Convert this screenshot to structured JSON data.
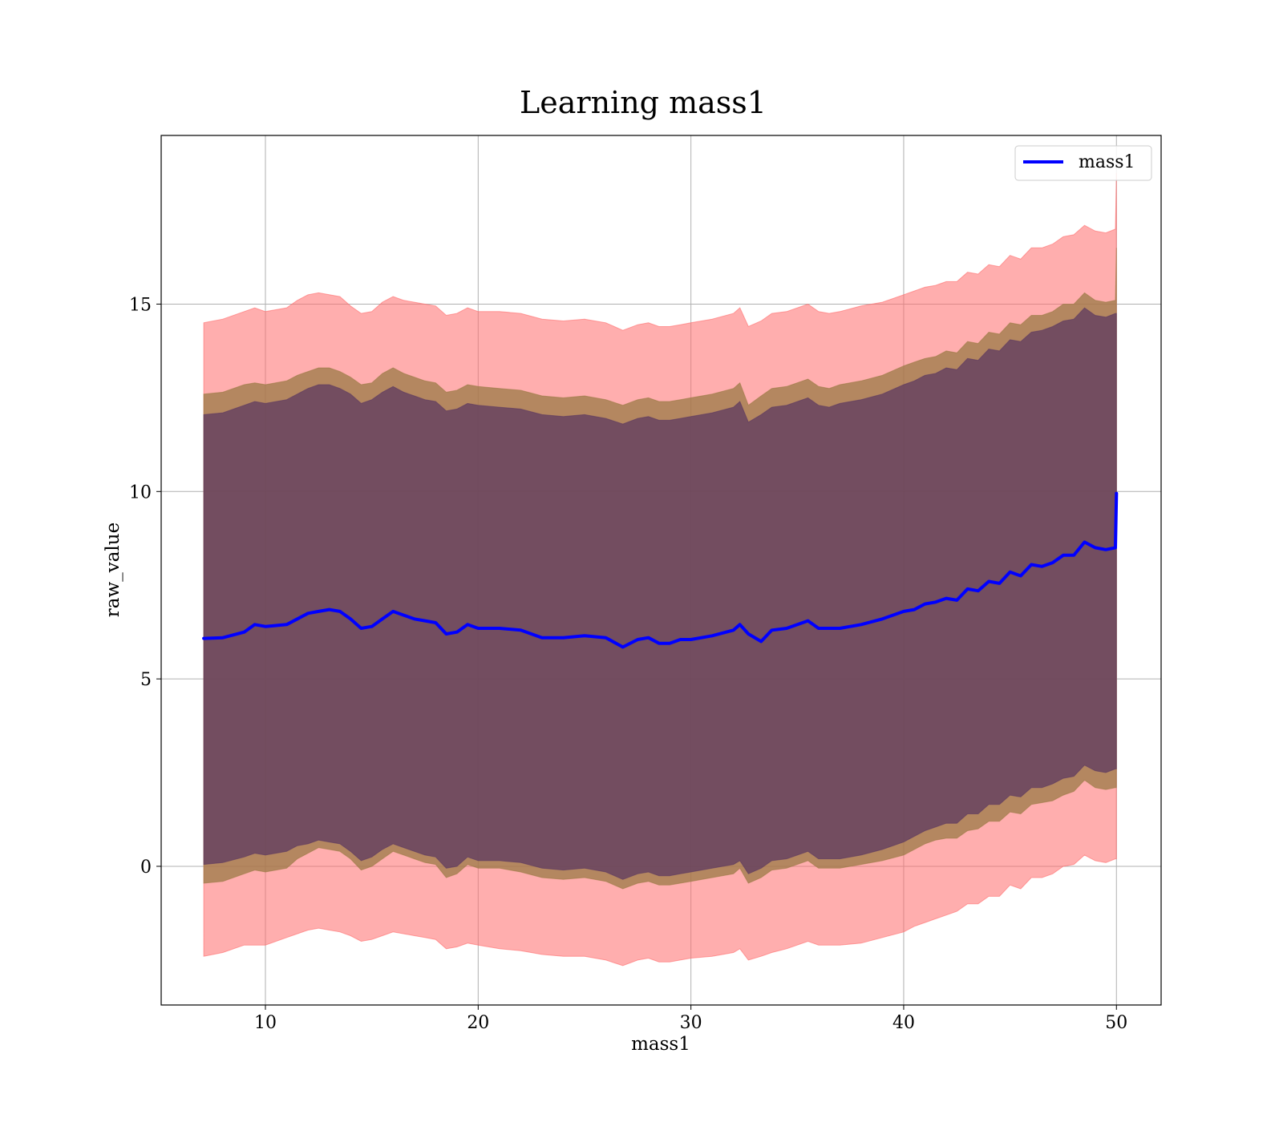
{
  "chart_data": {
    "type": "area",
    "title": "Learning mass1",
    "xlabel": "mass1",
    "ylabel": "raw_value",
    "xlim": [
      5.1,
      52.1
    ],
    "ylim": [
      -3.7,
      19.5
    ],
    "xticks": [
      10,
      20,
      30,
      40,
      50
    ],
    "yticks": [
      0,
      5,
      10,
      15
    ],
    "grid": true,
    "legend": {
      "position": "top-right",
      "entries": [
        "mass1"
      ]
    },
    "colors": {
      "line": "#0000ff",
      "outer_band": "#ff6b6b",
      "middle_band": "#9b7a45",
      "inner_band": "#5a3760",
      "grid": "#b0b0b0"
    },
    "x": [
      7.1,
      8.0,
      9.0,
      9.5,
      10.0,
      11.0,
      11.5,
      12.0,
      12.5,
      13.0,
      13.5,
      14.0,
      14.5,
      15.0,
      15.5,
      16.0,
      16.5,
      17.0,
      17.5,
      18.0,
      18.5,
      19.0,
      19.5,
      20.0,
      21.0,
      22.0,
      23.0,
      24.0,
      25.0,
      26.0,
      26.8,
      27.5,
      28.0,
      28.5,
      29.0,
      29.5,
      30.0,
      31.0,
      32.0,
      32.3,
      32.7,
      33.3,
      33.8,
      34.5,
      35.5,
      36.0,
      36.5,
      37.0,
      38.0,
      39.0,
      40.0,
      40.5,
      41.0,
      41.5,
      42.0,
      42.5,
      43.0,
      43.5,
      44.0,
      44.5,
      45.0,
      45.5,
      46.0,
      46.5,
      47.0,
      47.5,
      48.0,
      48.5,
      49.0,
      49.5,
      49.95
    ],
    "series": [
      {
        "name": "mass1",
        "kind": "line",
        "values": [
          6.08,
          6.1,
          6.25,
          6.45,
          6.4,
          6.45,
          6.6,
          6.75,
          6.8,
          6.85,
          6.8,
          6.6,
          6.35,
          6.4,
          6.6,
          6.8,
          6.7,
          6.6,
          6.55,
          6.5,
          6.2,
          6.25,
          6.45,
          6.35,
          6.35,
          6.3,
          6.1,
          6.1,
          6.15,
          6.1,
          5.85,
          6.05,
          6.1,
          5.95,
          5.95,
          6.05,
          6.05,
          6.15,
          6.3,
          6.45,
          6.2,
          6.0,
          6.3,
          6.35,
          6.55,
          6.35,
          6.35,
          6.35,
          6.45,
          6.6,
          6.8,
          6.85,
          7.0,
          7.05,
          7.15,
          7.1,
          7.4,
          7.35,
          7.6,
          7.55,
          7.85,
          7.75,
          8.05,
          8.0,
          8.1,
          8.3,
          8.3,
          8.65,
          8.5,
          8.45,
          8.5
        ]
      },
      {
        "kind": "band",
        "lower": [
          -2.4,
          -2.3,
          -2.1,
          -2.1,
          -2.1,
          -1.9,
          -1.8,
          -1.7,
          -1.65,
          -1.7,
          -1.75,
          -1.85,
          -2.0,
          -1.95,
          -1.85,
          -1.75,
          -1.8,
          -1.85,
          -1.9,
          -1.95,
          -2.2,
          -2.15,
          -2.05,
          -2.1,
          -2.2,
          -2.25,
          -2.35,
          -2.4,
          -2.4,
          -2.5,
          -2.65,
          -2.5,
          -2.45,
          -2.55,
          -2.55,
          -2.5,
          -2.45,
          -2.4,
          -2.3,
          -2.2,
          -2.5,
          -2.4,
          -2.3,
          -2.2,
          -2.0,
          -2.1,
          -2.1,
          -2.1,
          -2.05,
          -1.9,
          -1.75,
          -1.6,
          -1.5,
          -1.4,
          -1.3,
          -1.2,
          -1.0,
          -1.0,
          -0.8,
          -0.8,
          -0.5,
          -0.6,
          -0.3,
          -0.3,
          -0.2,
          0.0,
          0.05,
          0.3,
          0.15,
          0.1,
          0.2
        ],
        "upper": [
          14.5,
          14.6,
          14.8,
          14.9,
          14.8,
          14.9,
          15.1,
          15.25,
          15.3,
          15.25,
          15.2,
          14.95,
          14.75,
          14.8,
          15.05,
          15.2,
          15.1,
          15.05,
          15.0,
          14.95,
          14.7,
          14.75,
          14.9,
          14.8,
          14.8,
          14.75,
          14.6,
          14.55,
          14.6,
          14.5,
          14.3,
          14.45,
          14.5,
          14.4,
          14.4,
          14.45,
          14.5,
          14.6,
          14.75,
          14.9,
          14.4,
          14.55,
          14.75,
          14.8,
          15.0,
          14.8,
          14.75,
          14.8,
          14.95,
          15.05,
          15.25,
          15.35,
          15.45,
          15.5,
          15.6,
          15.6,
          15.85,
          15.8,
          16.05,
          16.0,
          16.3,
          16.2,
          16.5,
          16.5,
          16.6,
          16.8,
          16.85,
          17.1,
          16.95,
          16.9,
          17.0
        ]
      },
      {
        "kind": "band",
        "lower": [
          -0.45,
          -0.4,
          -0.2,
          -0.1,
          -0.15,
          -0.05,
          0.2,
          0.35,
          0.5,
          0.45,
          0.4,
          0.2,
          -0.1,
          0.0,
          0.2,
          0.4,
          0.3,
          0.2,
          0.1,
          0.05,
          -0.3,
          -0.2,
          0.05,
          -0.05,
          -0.05,
          -0.15,
          -0.3,
          -0.35,
          -0.3,
          -0.4,
          -0.6,
          -0.45,
          -0.4,
          -0.5,
          -0.5,
          -0.45,
          -0.4,
          -0.3,
          -0.2,
          -0.05,
          -0.45,
          -0.3,
          -0.1,
          -0.05,
          0.15,
          -0.05,
          -0.05,
          -0.05,
          0.05,
          0.15,
          0.3,
          0.45,
          0.6,
          0.7,
          0.75,
          0.75,
          0.95,
          1.0,
          1.2,
          1.2,
          1.45,
          1.4,
          1.65,
          1.7,
          1.75,
          1.9,
          2.0,
          2.3,
          2.1,
          2.05,
          2.1
        ],
        "upper": [
          12.6,
          12.65,
          12.85,
          12.9,
          12.85,
          12.95,
          13.1,
          13.2,
          13.3,
          13.3,
          13.2,
          13.05,
          12.85,
          12.9,
          13.15,
          13.3,
          13.15,
          13.05,
          12.95,
          12.9,
          12.65,
          12.7,
          12.85,
          12.8,
          12.75,
          12.7,
          12.55,
          12.5,
          12.55,
          12.45,
          12.3,
          12.45,
          12.5,
          12.4,
          12.4,
          12.45,
          12.5,
          12.6,
          12.75,
          12.9,
          12.3,
          12.55,
          12.75,
          12.8,
          13.0,
          12.8,
          12.75,
          12.85,
          12.95,
          13.1,
          13.35,
          13.45,
          13.55,
          13.6,
          13.75,
          13.7,
          14.0,
          13.95,
          14.25,
          14.2,
          14.5,
          14.45,
          14.7,
          14.7,
          14.8,
          15.0,
          15.0,
          15.3,
          15.1,
          15.05,
          15.1
        ]
      },
      {
        "kind": "band",
        "lower": [
          0.05,
          0.1,
          0.25,
          0.35,
          0.3,
          0.4,
          0.55,
          0.6,
          0.7,
          0.65,
          0.6,
          0.4,
          0.15,
          0.25,
          0.45,
          0.6,
          0.5,
          0.4,
          0.3,
          0.25,
          -0.05,
          0.0,
          0.25,
          0.15,
          0.15,
          0.1,
          -0.05,
          -0.1,
          -0.05,
          -0.15,
          -0.35,
          -0.2,
          -0.15,
          -0.25,
          -0.25,
          -0.2,
          -0.15,
          -0.05,
          0.05,
          0.15,
          -0.2,
          -0.05,
          0.15,
          0.2,
          0.4,
          0.2,
          0.2,
          0.2,
          0.3,
          0.45,
          0.65,
          0.8,
          0.95,
          1.05,
          1.15,
          1.15,
          1.4,
          1.4,
          1.65,
          1.65,
          1.9,
          1.85,
          2.1,
          2.1,
          2.2,
          2.35,
          2.4,
          2.7,
          2.55,
          2.5,
          2.6
        ],
        "upper": [
          12.05,
          12.1,
          12.3,
          12.4,
          12.35,
          12.45,
          12.6,
          12.75,
          12.85,
          12.85,
          12.75,
          12.6,
          12.35,
          12.45,
          12.65,
          12.8,
          12.65,
          12.55,
          12.45,
          12.4,
          12.15,
          12.2,
          12.35,
          12.3,
          12.25,
          12.2,
          12.05,
          12.0,
          12.05,
          11.95,
          11.8,
          11.95,
          12.0,
          11.9,
          11.9,
          11.95,
          12.0,
          12.1,
          12.25,
          12.4,
          11.85,
          12.05,
          12.25,
          12.3,
          12.5,
          12.3,
          12.25,
          12.35,
          12.45,
          12.6,
          12.85,
          12.95,
          13.1,
          13.15,
          13.3,
          13.25,
          13.55,
          13.5,
          13.8,
          13.75,
          14.05,
          14.0,
          14.25,
          14.3,
          14.4,
          14.55,
          14.6,
          14.9,
          14.7,
          14.65,
          14.75
        ]
      }
    ],
    "end_spike": {
      "x": 50.0,
      "line_top": 9.95,
      "outer_band_top": 18.5,
      "middle_band_top": 16.5
    }
  }
}
